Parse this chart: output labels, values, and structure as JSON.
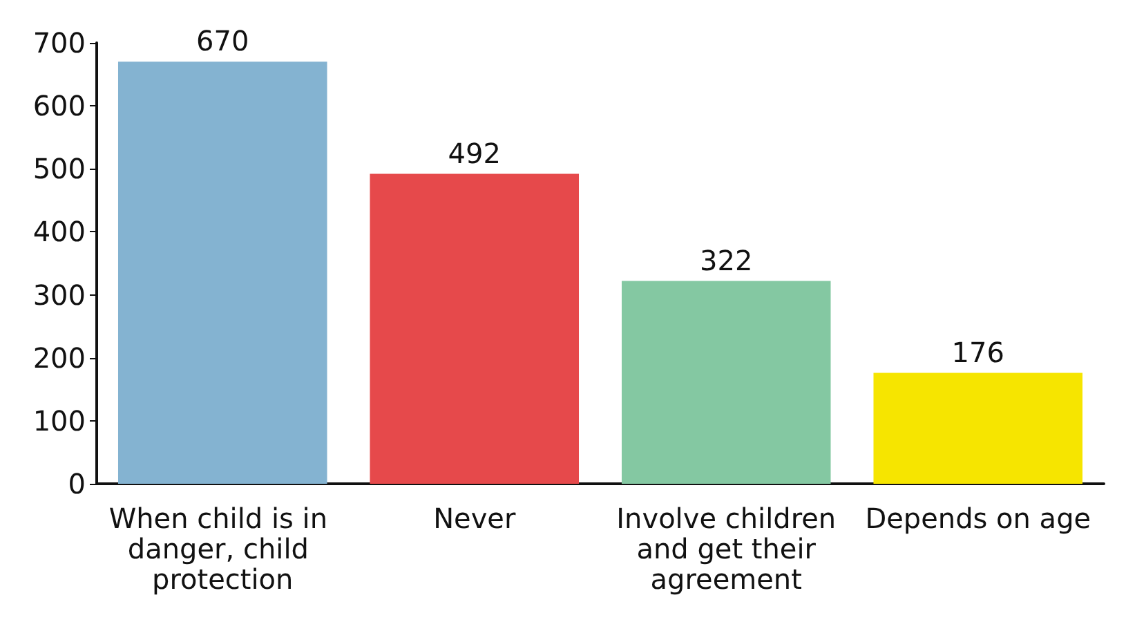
{
  "chart_data": {
    "type": "bar",
    "categories": [
      "When child is in danger, child protection",
      "Never",
      "Involve children and get their agreement",
      "Depends on age"
    ],
    "values": [
      670,
      492,
      322,
      176
    ],
    "colors": [
      "#84b3d1",
      "#e6494b",
      "#84c8a2",
      "#f6e500"
    ],
    "ylim": [
      0,
      700
    ],
    "yticks": [
      0,
      100,
      200,
      300,
      400,
      500,
      600,
      700
    ],
    "data_labels": true
  }
}
